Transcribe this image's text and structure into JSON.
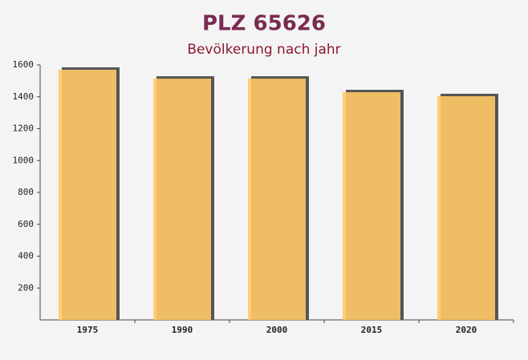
{
  "chart_data": {
    "type": "bar",
    "title": "PLZ 65626",
    "subtitle": "Bevölkerung nach jahr",
    "categories": [
      "1975",
      "1990",
      "2000",
      "2015",
      "2020"
    ],
    "values": [
      1570,
      1514,
      1514,
      1429,
      1404
    ],
    "color": "#ffc966",
    "ylim": [
      0,
      1600
    ],
    "yticks": [
      200,
      400,
      600,
      800,
      1000,
      1200,
      1400,
      1600
    ]
  }
}
